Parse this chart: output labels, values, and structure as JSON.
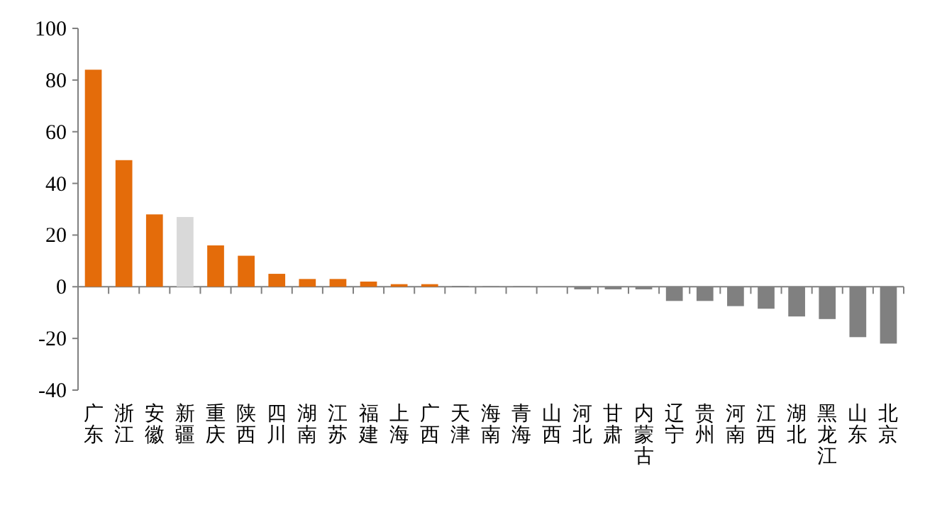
{
  "chart_data": {
    "type": "bar",
    "categories": [
      "广东",
      "浙江",
      "安徽",
      "新疆",
      "重庆",
      "陕西",
      "四川",
      "湖南",
      "江苏",
      "福建",
      "上海",
      "广西",
      "天津",
      "海南",
      "青海",
      "山西",
      "河北",
      "甘肃",
      "内蒙古",
      "辽宁",
      "贵州",
      "河南",
      "江西",
      "湖北",
      "黑龙江",
      "山东",
      "北京"
    ],
    "values": [
      84,
      49,
      28,
      27,
      16,
      12,
      5,
      3,
      3,
      2,
      1,
      1,
      0.3,
      0.2,
      0.2,
      0.1,
      -1,
      -1,
      -1,
      -5.5,
      -5.5,
      -7.5,
      -8.5,
      -11.5,
      -12.5,
      -19.5,
      -22
    ],
    "colors": [
      "#e46c0a",
      "#e46c0a",
      "#e46c0a",
      "#d9d9d9",
      "#e46c0a",
      "#e46c0a",
      "#e46c0a",
      "#e46c0a",
      "#e46c0a",
      "#e46c0a",
      "#e46c0a",
      "#e46c0a",
      "#808080",
      "#808080",
      "#808080",
      "#808080",
      "#808080",
      "#808080",
      "#808080",
      "#808080",
      "#808080",
      "#808080",
      "#808080",
      "#808080",
      "#808080",
      "#808080",
      "#808080"
    ],
    "ylim": [
      -40,
      100
    ],
    "yticks": [
      -40,
      -20,
      0,
      20,
      40,
      60,
      80,
      100
    ]
  }
}
